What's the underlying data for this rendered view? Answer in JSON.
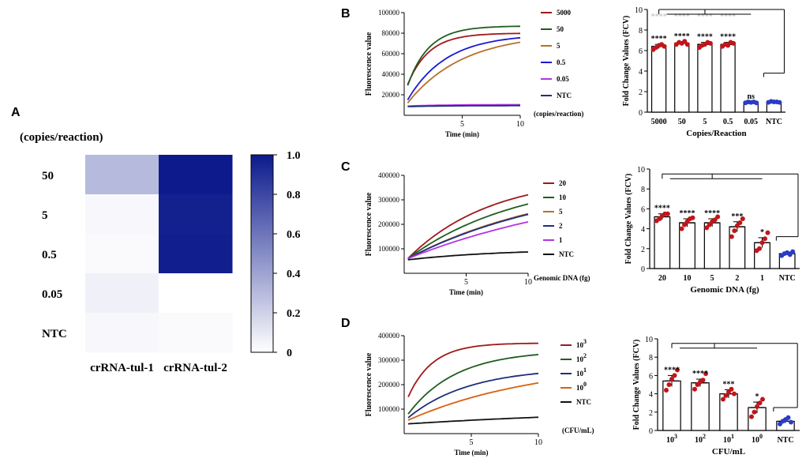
{
  "colors": {
    "dark_red": "#a01818",
    "dark_green": "#1e5e1e",
    "blue": "#1a1ad0",
    "brown": "#b8702a",
    "purple": "#b233e6",
    "navy": "#1f2f7a",
    "black": "#111111",
    "orange": "#d9600a",
    "heat_high": "#0c1a8c",
    "heat_low": "#ffffff",
    "point_red": "#c0151a",
    "point_blue": "#2b3cc4"
  },
  "panel_labels": {
    "A": "A",
    "B": "B",
    "C": "C",
    "D": "D"
  },
  "chart_data": [
    {
      "id": "A",
      "type": "heatmap",
      "title": "(copies/reaction)",
      "rows": [
        "50",
        "5",
        "0.5",
        "0.05",
        "NTC"
      ],
      "columns": [
        "crRNA-tul-1",
        "crRNA-tul-2"
      ],
      "values": [
        [
          0.3,
          1.0
        ],
        [
          0.03,
          0.97
        ],
        [
          0.02,
          0.98
        ],
        [
          0.06,
          0.0
        ],
        [
          0.03,
          0.02
        ]
      ],
      "colorbar": {
        "min": 0,
        "max": 1.0,
        "ticks": [
          "0",
          "0.2",
          "0.4",
          "0.6",
          "0.8",
          "1.0"
        ]
      }
    },
    {
      "id": "B-curves",
      "type": "line",
      "xlabel": "Time (min)",
      "ylabel": "Fluorescence value",
      "xlim": [
        0,
        10
      ],
      "ylim": [
        0,
        100000
      ],
      "xticks": [
        "5",
        "10"
      ],
      "yticks": [
        "20000",
        "40000",
        "60000",
        "80000",
        "100000"
      ],
      "legend_note": "(copies/reaction)",
      "series": [
        {
          "name": "5000",
          "color_key": "dark_red",
          "start": 30000,
          "plateau": 80000,
          "rate": 0.55
        },
        {
          "name": "50",
          "color_key": "dark_green",
          "start": 29000,
          "plateau": 87000,
          "rate": 0.55
        },
        {
          "name": "5",
          "color_key": "brown",
          "start": 12000,
          "plateau": 80000,
          "rate": 0.21
        },
        {
          "name": "0.5",
          "color_key": "blue",
          "start": 15000,
          "plateau": 79000,
          "rate": 0.3
        },
        {
          "name": "0.05",
          "color_key": "purple",
          "start": 9000,
          "plateau": 10500,
          "rate": 0.3
        },
        {
          "name": "NTC",
          "color_key": "navy",
          "start": 8500,
          "plateau": 9500,
          "rate": 0.3
        }
      ]
    },
    {
      "id": "B-bars",
      "type": "bar",
      "xlabel": "Copies/Reaction",
      "ylabel": "Fold Change Values (FCV)",
      "ylim": [
        0,
        10
      ],
      "yticks": [
        "0",
        "2",
        "4",
        "6",
        "8",
        "10"
      ],
      "categories": [
        "5000",
        "50",
        "5",
        "0.5",
        "0.05",
        "NTC"
      ],
      "values": [
        6.4,
        6.7,
        6.6,
        6.6,
        0.95,
        1.0
      ],
      "errors": [
        0.2,
        0.15,
        0.2,
        0.2,
        0.05,
        0.05
      ],
      "points": [
        [
          6.1,
          6.3,
          6.5,
          6.6,
          6.4
        ],
        [
          6.6,
          6.8,
          6.7,
          6.9,
          6.6
        ],
        [
          6.3,
          6.5,
          6.6,
          6.8,
          6.7
        ],
        [
          6.4,
          6.6,
          6.5,
          6.8,
          6.7
        ],
        [
          0.9,
          1.0,
          0.95,
          1.0,
          0.9
        ],
        [
          0.95,
          1.05,
          1.0,
          1.0,
          0.95
        ]
      ],
      "point_color_keys": [
        "point_red",
        "point_red",
        "point_red",
        "point_red",
        "point_blue",
        "point_blue"
      ],
      "significance": [
        "****",
        "****",
        "****",
        "****",
        "ns",
        ""
      ],
      "faded_significance": [
        "****",
        "****",
        "****",
        "****",
        "",
        ""
      ],
      "bracket_heights": [
        10,
        3.8
      ]
    },
    {
      "id": "C-curves",
      "type": "line",
      "xlabel": "Time (min)",
      "ylabel": "Fluorescence value",
      "xlim": [
        0,
        10
      ],
      "ylim": [
        0,
        400000
      ],
      "xticks": [
        "5",
        "10"
      ],
      "yticks": [
        "100000",
        "200000",
        "300000",
        "400000"
      ],
      "legend_note": "Genomic DNA (fg)",
      "series": [
        {
          "name": "20",
          "color_key": "dark_red",
          "start": 60000,
          "plateau": 400000,
          "rate": 0.15
        },
        {
          "name": "10",
          "color_key": "dark_green",
          "start": 60000,
          "plateau": 400000,
          "rate": 0.11
        },
        {
          "name": "5",
          "color_key": "brown",
          "start": 60000,
          "plateau": 400000,
          "rate": 0.08
        },
        {
          "name": "2",
          "color_key": "navy",
          "start": 60000,
          "plateau": 400000,
          "rate": 0.078
        },
        {
          "name": "1",
          "color_key": "purple",
          "start": 60000,
          "plateau": 400000,
          "rate": 0.06
        },
        {
          "name": "NTC",
          "color_key": "black",
          "start": 55000,
          "plateau": 100000,
          "rate": 0.13
        }
      ]
    },
    {
      "id": "C-bars",
      "type": "bar",
      "xlabel": "Genomic DNA (fg)",
      "ylabel": "Fold Change Values (FCV)",
      "ylim": [
        0,
        10
      ],
      "yticks": [
        "0",
        "2",
        "4",
        "6",
        "8",
        "10"
      ],
      "categories": [
        "20",
        "10",
        "5",
        "2",
        "1",
        "NTC"
      ],
      "values": [
        5.2,
        4.6,
        4.6,
        4.2,
        2.6,
        1.5
      ],
      "errors": [
        0.3,
        0.4,
        0.4,
        0.5,
        0.5,
        0.15
      ],
      "points": [
        [
          4.8,
          5.0,
          5.3,
          5.5,
          5.5
        ],
        [
          4.0,
          4.4,
          4.7,
          5.0,
          5.1
        ],
        [
          4.1,
          4.4,
          4.7,
          4.9,
          5.2
        ],
        [
          3.2,
          3.8,
          4.3,
          4.6,
          5.0
        ],
        [
          1.8,
          2.0,
          2.6,
          3.0,
          3.6
        ],
        [
          1.3,
          1.5,
          1.6,
          1.4,
          1.7
        ]
      ],
      "point_color_keys": [
        "point_red",
        "point_red",
        "point_red",
        "point_red",
        "point_red",
        "point_blue"
      ],
      "significance": [
        "****",
        "****",
        "****",
        "***",
        "*",
        ""
      ],
      "faded_significance": [
        "",
        "",
        "",
        "",
        "",
        ""
      ],
      "bracket_heights": [
        9.5,
        3.2
      ]
    },
    {
      "id": "D-curves",
      "type": "line",
      "xlabel": "Time (min)",
      "ylabel": "Fluorescence value",
      "xlim": [
        0,
        10
      ],
      "ylim": [
        0,
        400000
      ],
      "xticks": [
        "5",
        "10"
      ],
      "yticks": [
        "100000",
        "200000",
        "300000",
        "400000"
      ],
      "legend_note": "(CFU/mL)",
      "series": [
        {
          "name_base": "10",
          "name_exp": "3",
          "color_key": "dark_red",
          "start": 150000,
          "plateau": 370000,
          "rate": 0.55
        },
        {
          "name_base": "10",
          "name_exp": "2",
          "color_key": "dark_green",
          "start": 80000,
          "plateau": 340000,
          "rate": 0.28
        },
        {
          "name_base": "10",
          "name_exp": "1",
          "color_key": "navy",
          "start": 65000,
          "plateau": 270000,
          "rate": 0.22
        },
        {
          "name_base": "10",
          "name_exp": "0",
          "color_key": "orange",
          "start": 55000,
          "plateau": 300000,
          "rate": 0.1
        },
        {
          "name": "NTC",
          "color_key": "black",
          "start": 40000,
          "plateau": 110000,
          "rate": 0.05
        }
      ]
    },
    {
      "id": "D-bars",
      "type": "bar",
      "xlabel": "CFU/mL",
      "ylabel": "Fold Change Values (FCV)",
      "ylim": [
        0,
        10
      ],
      "yticks": [
        "0",
        "2",
        "4",
        "6",
        "8",
        "10"
      ],
      "categories": [
        {
          "base": "10",
          "exp": "3"
        },
        {
          "base": "10",
          "exp": "2"
        },
        {
          "base": "10",
          "exp": "1"
        },
        {
          "base": "10",
          "exp": "0"
        },
        {
          "base": "NTC",
          "exp": ""
        }
      ],
      "values": [
        5.4,
        5.2,
        4.0,
        2.5,
        1.0
      ],
      "errors": [
        0.6,
        0.4,
        0.45,
        0.6,
        0.2
      ],
      "points": [
        [
          4.4,
          5.0,
          5.6,
          6.0,
          6.6
        ],
        [
          4.5,
          5.0,
          5.3,
          5.5,
          6.2
        ],
        [
          3.4,
          3.8,
          4.2,
          4.5,
          4.0
        ],
        [
          1.5,
          2.0,
          2.6,
          3.0,
          3.4
        ],
        [
          0.7,
          1.0,
          1.2,
          1.4,
          0.9
        ]
      ],
      "point_color_keys": [
        "point_red",
        "point_red",
        "point_red",
        "point_red",
        "point_blue"
      ],
      "significance": [
        "****",
        "****",
        "***",
        "*",
        ""
      ],
      "faded_significance": [
        "",
        "",
        "",
        "",
        ""
      ],
      "bracket_heights": [
        9.5,
        2.5
      ]
    }
  ]
}
